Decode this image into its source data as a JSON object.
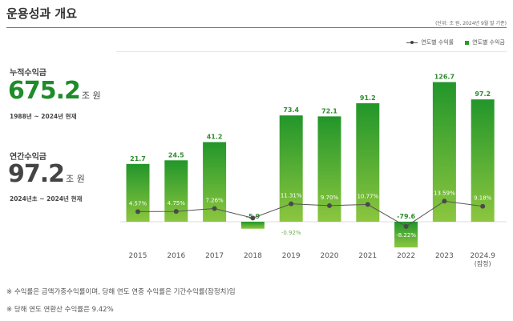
{
  "header": {
    "title": "운용성과 개요",
    "unit_note": "(단위: 조 원, 2024년 9월 말 기준)"
  },
  "legend": {
    "line": "연도별 수익률",
    "bar": "연도별 수익금"
  },
  "cumulative": {
    "label": "누적수익금",
    "value": "675.2",
    "unit": "조 원",
    "period": "1988년 ~ 2024년 현재",
    "color": "#1e8c2a"
  },
  "annual": {
    "label": "연간수익금",
    "value": "97.2",
    "unit": "조 원",
    "period": "2024년초 ~ 2024년 현재",
    "color": "#444444"
  },
  "notes": [
    "※ 수익률은 금액가중수익률이며, 당해 연도 연중 수익률은 기간수익률(잠정치)임",
    "※ 당해 연도 연환산 수익률은 9.42%"
  ],
  "chart_data": {
    "type": "bar+line",
    "categories": [
      "2015",
      "2016",
      "2017",
      "2018",
      "2019",
      "2020",
      "2021",
      "2022",
      "2023",
      "2024.9\n(잠정)"
    ],
    "series": [
      {
        "name": "연도별 수익금",
        "type": "bar",
        "values": [
          21.7,
          24.5,
          41.2,
          -5.9,
          73.4,
          72.1,
          91.2,
          -79.6,
          126.7,
          97.2
        ],
        "labels": [
          "21.7",
          "24.5",
          "41.2",
          "-5.9",
          "73.4",
          "72.1",
          "91.2",
          "-79.6",
          "126.7",
          "97.2"
        ]
      },
      {
        "name": "연도별 수익률",
        "type": "line",
        "values": [
          4.57,
          4.75,
          7.26,
          -0.92,
          11.31,
          9.7,
          10.77,
          -8.22,
          13.59,
          9.18
        ],
        "labels": [
          "4.57%",
          "4.75%",
          "7.26%",
          "-0.92%",
          "11.31%",
          "9.70%",
          "10.77%",
          "-8.22%",
          "13.59%",
          "9.18%"
        ]
      }
    ],
    "colors": {
      "bar_top": "#22962a",
      "bar_bottom": "#8cc63f",
      "line": "#555555",
      "value_label": "#2e8b2e"
    }
  }
}
